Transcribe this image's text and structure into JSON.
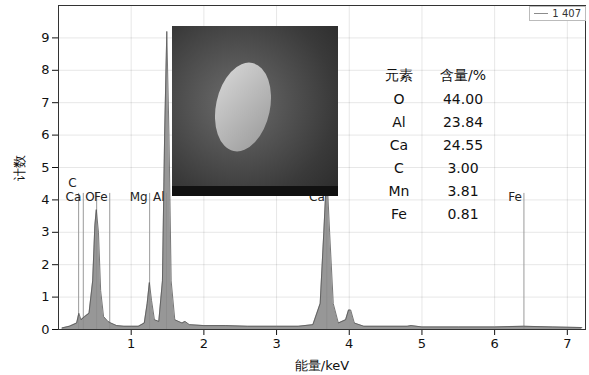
{
  "chart_data": {
    "type": "area",
    "x_label": "能量/keV",
    "y_label": "计数",
    "xlim": [
      0,
      7.25
    ],
    "xticks": [
      1,
      2,
      3,
      4,
      5,
      6,
      7
    ],
    "ylim": [
      0,
      10
    ],
    "yticks": [
      0,
      1,
      2,
      3,
      4,
      5,
      6,
      7,
      8,
      9
    ],
    "grid": true,
    "legend": "upper right",
    "x": [
      0.05,
      0.15,
      0.25,
      0.28,
      0.31,
      0.36,
      0.42,
      0.47,
      0.5,
      0.52,
      0.55,
      0.58,
      0.62,
      0.68,
      0.72,
      0.8,
      0.9,
      1.0,
      1.1,
      1.18,
      1.22,
      1.25,
      1.28,
      1.32,
      1.38,
      1.43,
      1.46,
      1.49,
      1.52,
      1.55,
      1.6,
      1.7,
      1.74,
      1.8,
      2.0,
      2.3,
      2.6,
      3.0,
      3.3,
      3.5,
      3.6,
      3.65,
      3.69,
      3.73,
      3.78,
      3.85,
      3.95,
      3.99,
      4.02,
      4.07,
      4.2,
      4.8,
      4.85,
      5.0,
      5.5,
      6.0,
      6.4,
      6.8,
      7.2
    ],
    "series": [
      {
        "name": "1 407",
        "color": "#8c8c8c",
        "values": [
          0.05,
          0.1,
          0.2,
          0.5,
          0.3,
          0.4,
          0.5,
          1.5,
          3.2,
          3.7,
          3.0,
          1.2,
          0.4,
          0.25,
          0.2,
          0.12,
          0.1,
          0.1,
          0.1,
          0.2,
          0.8,
          1.45,
          0.9,
          0.3,
          0.25,
          1.5,
          6.0,
          9.2,
          6.0,
          1.5,
          0.3,
          0.2,
          0.25,
          0.15,
          0.12,
          0.12,
          0.1,
          0.1,
          0.1,
          0.15,
          0.8,
          3.0,
          4.9,
          3.0,
          0.8,
          0.2,
          0.3,
          0.6,
          0.6,
          0.2,
          0.1,
          0.1,
          0.12,
          0.08,
          0.08,
          0.08,
          0.1,
          0.08,
          0.06
        ]
      }
    ],
    "annotations": [
      {
        "text": "C",
        "x": 0.277
      },
      {
        "text": "Ca",
        "x": 0.341
      },
      {
        "text": "O",
        "x": 0.525
      },
      {
        "text": "Fe",
        "x": 0.705
      },
      {
        "text": "Mg",
        "x": 1.254
      },
      {
        "text": "Al",
        "x": 1.487
      },
      {
        "text": "Ca",
        "x": 3.691
      },
      {
        "text": "Fe",
        "x": 6.403
      }
    ],
    "composition": {
      "header": [
        "元素",
        "含量/%"
      ],
      "rows": [
        [
          "O",
          44.0,
          "44.00"
        ],
        [
          "Al",
          23.84,
          "23.84"
        ],
        [
          "Ca",
          24.55,
          "24.55"
        ],
        [
          "C",
          3.0,
          "3.00"
        ],
        [
          "Mn",
          3.81,
          "3.81"
        ],
        [
          "Fe",
          0.81,
          "0.81"
        ]
      ]
    }
  }
}
